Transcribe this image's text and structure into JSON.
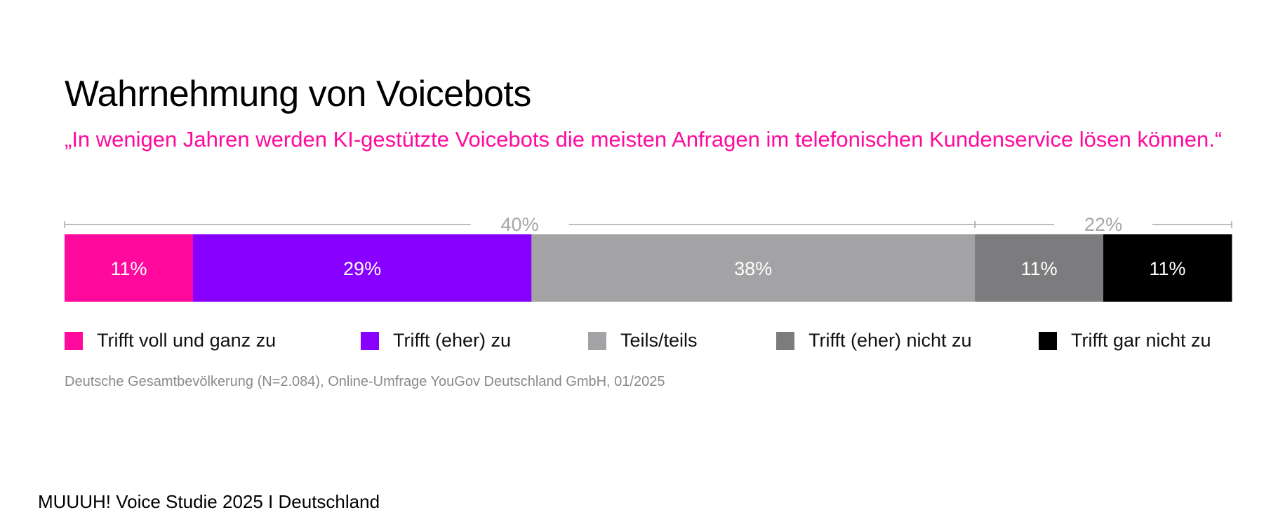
{
  "title": "Wahrnehmung von Voicebots",
  "subtitle": "„In wenigen Jahren werden KI-gestützte Voicebots die meisten Anfragen im telefonischen Kundenservice lösen können.“",
  "source": "Deutsche Gesamtbevölkerung (N=2.084), Online-Umfrage YouGov Deutschland GmbH, 01/2025",
  "footer": "MUUUH! Voice Studie 2025 I Deutschland",
  "chart_data": {
    "type": "bar",
    "orientation": "horizontal-stacked-100",
    "series": [
      {
        "name": "Trifft voll und ganz zu",
        "value": 11,
        "label": "11%",
        "color": "#ff0a9c"
      },
      {
        "name": "Trifft (eher) zu",
        "value": 29,
        "label": "29%",
        "color": "#8800ff"
      },
      {
        "name": "Teils/teils",
        "value": 38,
        "label": "38%",
        "color": "#a3a3a5"
      },
      {
        "name": "Trifft (eher) nicht zu",
        "value": 11,
        "label": "11%",
        "color": "#7c7c7e"
      },
      {
        "name": "Trifft gar nicht zu",
        "value": 11,
        "label": "11%",
        "color": "#000000"
      }
    ],
    "brackets": [
      {
        "label": "40%",
        "from": 0,
        "to": 2
      },
      {
        "label": "22%",
        "from": 3,
        "to": 4
      }
    ],
    "legend_position": "bottom",
    "bracket_color": "#a6a6a6"
  }
}
